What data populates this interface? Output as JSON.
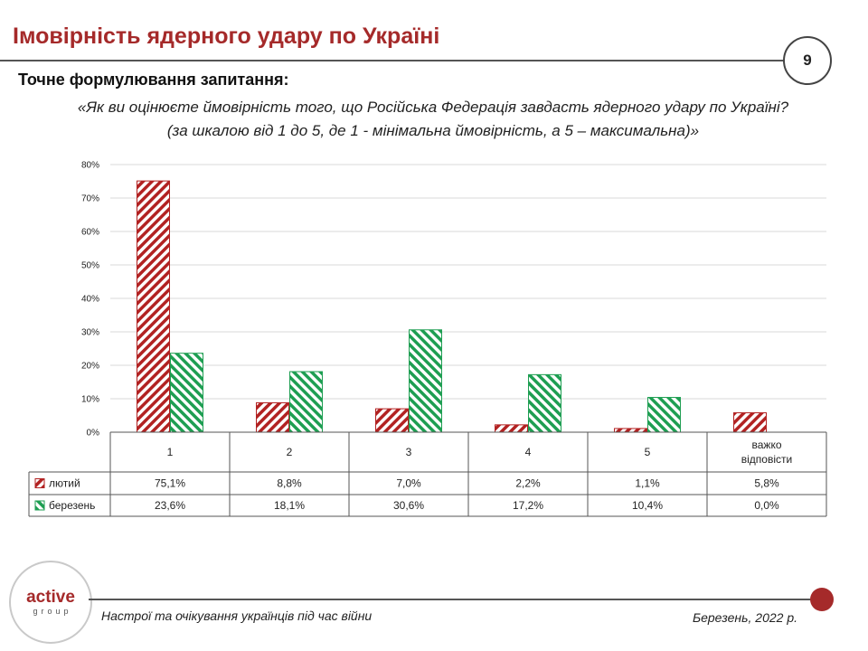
{
  "header": {
    "title": "Імовірність ядерного удару по Україні",
    "page_number": "9"
  },
  "question": {
    "heading": "Точне формулювання запитання:",
    "line1": "«Як ви оцінюєте ймовірність того, що Російська Федерація завдасть ядерного удару по Україні?",
    "line2": "(за шкалою від 1 до 5, де 1 - мінімальна ймовірність, а 5 – максимальна)»"
  },
  "colors": {
    "series_feb": "#b22222",
    "series_mar": "#1e9e52",
    "title": "#a52a2a",
    "grid": "#d9d9d9"
  },
  "chart_data": {
    "type": "bar",
    "title": "",
    "categories": [
      [
        "1"
      ],
      [
        "2"
      ],
      [
        "3"
      ],
      [
        "4"
      ],
      [
        "5"
      ],
      [
        "важко",
        "відповісти"
      ]
    ],
    "series": [
      {
        "name": "лютий",
        "values": [
          75.1,
          8.8,
          7.0,
          2.2,
          1.1,
          5.8
        ],
        "labels": [
          "75,1%",
          "8,8%",
          "7,0%",
          "2,2%",
          "1,1%",
          "5,8%"
        ]
      },
      {
        "name": "березень",
        "values": [
          23.6,
          18.1,
          30.6,
          17.2,
          10.4,
          0.0
        ],
        "labels": [
          "23,6%",
          "18,1%",
          "30,6%",
          "17,2%",
          "10,4%",
          "0,0%"
        ]
      }
    ],
    "yticks": [
      "0%",
      "10%",
      "20%",
      "30%",
      "40%",
      "50%",
      "60%",
      "70%",
      "80%"
    ],
    "ylim": [
      0,
      80
    ],
    "grid": true,
    "legend": "data-table"
  },
  "footer": {
    "logo_main": "active",
    "logo_sub": "group",
    "left_text": "Настрої та очікування українців під час війни",
    "right_text": "Березень, 2022 р."
  }
}
